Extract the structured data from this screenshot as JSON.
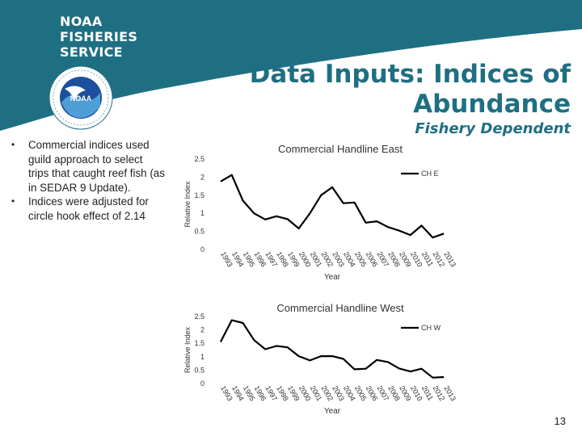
{
  "header": {
    "logo_text": "NOAA\nFISHERIES\nSERVICE",
    "title": "Data Inputs: Indices of\nAbundance",
    "subtitle": "Fishery Dependent",
    "band_color": "#1f6f83",
    "title_color": "#1f6f83"
  },
  "bullets": [
    "Commercial indices used guild approach to select trips that caught reef fish (as in SEDAR 9 Update).",
    "Indices were adjusted for circle hook effect of 2.14"
  ],
  "page_number": "13",
  "chart_data": [
    {
      "type": "line",
      "title": "Commercial Handline East",
      "xlabel": "Year",
      "ylabel": "Relative Index",
      "ylim": [
        0,
        2.5
      ],
      "yticks": [
        "0",
        "0.5",
        "1",
        "1.5",
        "2",
        "2.5"
      ],
      "grid": false,
      "legend": "top-right",
      "categories": [
        "1993",
        "1994",
        "1995",
        "1996",
        "1997",
        "1998",
        "1999",
        "2000",
        "2001",
        "2002",
        "2003",
        "2004",
        "2005",
        "2006",
        "2007",
        "2008",
        "2009",
        "2010",
        "2011",
        "2012",
        "2013"
      ],
      "series": [
        {
          "name": "CH E",
          "color": "#000000",
          "values": [
            1.88,
            2.06,
            1.35,
            1.0,
            0.83,
            0.92,
            0.84,
            0.58,
            1.0,
            1.5,
            1.72,
            1.28,
            1.3,
            0.74,
            0.78,
            0.62,
            0.52,
            0.4,
            0.66,
            0.33,
            0.44
          ]
        }
      ]
    },
    {
      "type": "line",
      "title": "Commercial Handline West",
      "xlabel": "Year",
      "ylabel": "Relative Index",
      "ylim": [
        0,
        2.5
      ],
      "yticks": [
        "0",
        "0.5",
        "1",
        "1.5",
        "2",
        "2.5"
      ],
      "grid": false,
      "legend": "top-right",
      "categories": [
        "1993",
        "1994",
        "1995",
        "1996",
        "1997",
        "1998",
        "1999",
        "2000",
        "2001",
        "2002",
        "2003",
        "2004",
        "2005",
        "2006",
        "2007",
        "2008",
        "2009",
        "2010",
        "2011",
        "2012",
        "2013"
      ],
      "series": [
        {
          "name": "CH W",
          "color": "#000000",
          "values": [
            1.55,
            2.36,
            2.26,
            1.62,
            1.28,
            1.4,
            1.35,
            1.02,
            0.86,
            1.02,
            1.02,
            0.92,
            0.53,
            0.55,
            0.88,
            0.8,
            0.56,
            0.45,
            0.55,
            0.22,
            0.24
          ]
        }
      ]
    }
  ]
}
